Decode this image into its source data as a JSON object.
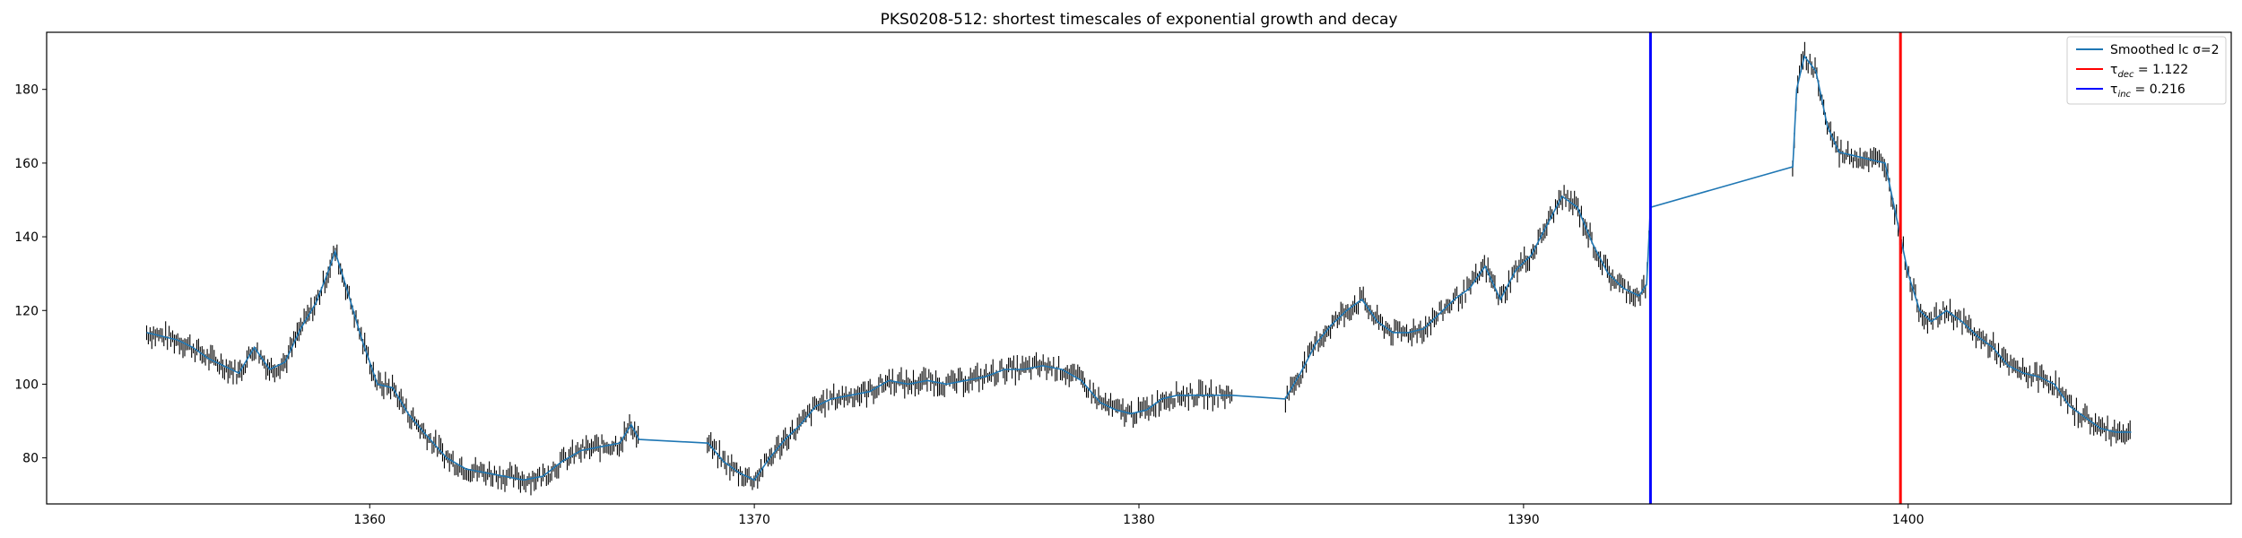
{
  "chart_data": {
    "type": "line",
    "title": "PKS0208-512: shortest timescales of exponential growth and decay",
    "xlabel": "",
    "ylabel": "",
    "xlim": [
      1351.6,
      1408.4
    ],
    "ylim": [
      67.5,
      195.5
    ],
    "x_ticks": [
      1360,
      1370,
      1380,
      1390,
      1400
    ],
    "y_ticks": [
      80,
      100,
      120,
      140,
      160,
      180
    ],
    "grid": false,
    "legend_position": "top-right",
    "colors": {
      "smoothed": "#1f77b4",
      "decay_line": "#ff0000",
      "growth_line": "#0000ff",
      "errorbar": "#000000"
    },
    "series": [
      {
        "name": "Smoothed lc σ=2",
        "x": [
          1354.2,
          1354.6,
          1355.0,
          1355.4,
          1355.8,
          1356.2,
          1356.6,
          1357.0,
          1357.4,
          1357.8,
          1358.2,
          1358.6,
          1358.9,
          1359.1,
          1359.4,
          1359.8,
          1360.2,
          1360.6,
          1361.0,
          1361.4,
          1362.0,
          1362.5,
          1363.0,
          1363.5,
          1364.0,
          1364.5,
          1365.0,
          1365.5,
          1366.0,
          1366.5,
          1366.8,
          1367.0,
          1368.8,
          1369.2,
          1369.6,
          1370.0,
          1370.4,
          1370.8,
          1371.2,
          1371.6,
          1372.0,
          1372.5,
          1373.0,
          1373.5,
          1374.0,
          1374.5,
          1375.0,
          1375.5,
          1376.0,
          1376.5,
          1377.0,
          1377.5,
          1378.0,
          1378.5,
          1379.0,
          1379.4,
          1379.8,
          1380.2,
          1380.6,
          1381.0,
          1381.4,
          1382.4,
          1383.8,
          1384.2,
          1384.6,
          1385.0,
          1385.4,
          1385.8,
          1386.2,
          1386.6,
          1387.0,
          1387.4,
          1387.8,
          1388.2,
          1388.6,
          1389.0,
          1389.4,
          1389.8,
          1390.2,
          1390.6,
          1391.0,
          1391.4,
          1391.8,
          1392.2,
          1392.6,
          1393.0,
          1393.2,
          1393.3,
          1397.0,
          1397.1,
          1397.3,
          1397.6,
          1397.9,
          1398.2,
          1398.6,
          1399.0,
          1399.4,
          1399.8,
          1400.0,
          1400.3,
          1400.6,
          1401.0,
          1401.4,
          1401.8,
          1402.2,
          1402.6,
          1403.0,
          1403.4,
          1403.8,
          1404.2,
          1404.6,
          1405.0,
          1405.4,
          1405.8
        ],
        "y": [
          114,
          113,
          112,
          110,
          107,
          105,
          103,
          110,
          104,
          106,
          115,
          122,
          130,
          136,
          126,
          112,
          100,
          99,
          92,
          87,
          80,
          77,
          76,
          75,
          74,
          75,
          79,
          82,
          83,
          84,
          89,
          85,
          84,
          79,
          76,
          74,
          80,
          85,
          89,
          94,
          96,
          97,
          98,
          101,
          100,
          101,
          100,
          101,
          102,
          104,
          104,
          105,
          104,
          101,
          95,
          93,
          92,
          93,
          96,
          97,
          97,
          97,
          96,
          103,
          111,
          116,
          120,
          123,
          117,
          114,
          114,
          115,
          119,
          123,
          126,
          132,
          123,
          131,
          135,
          143,
          151,
          148,
          138,
          130,
          126,
          124,
          127,
          148,
          159,
          180,
          189,
          185,
          170,
          163,
          162,
          161,
          160,
          140,
          130,
          120,
          117,
          120,
          117,
          113,
          110,
          105,
          103,
          102,
          100,
          94,
          91,
          88,
          87,
          87
        ]
      },
      {
        "name": "τ_dec = 1.122",
        "x": 1399.8
      },
      {
        "name": "τ_inc = 0.216",
        "x": 1393.3
      }
    ],
    "legend": {
      "smoothed_label": "Smoothed lc σ=2",
      "dec_sym": "τ",
      "dec_sub": "dec",
      "dec_value": " = 1.122",
      "inc_sym": "τ",
      "inc_sub": "inc",
      "inc_value": " = 0.216"
    }
  }
}
